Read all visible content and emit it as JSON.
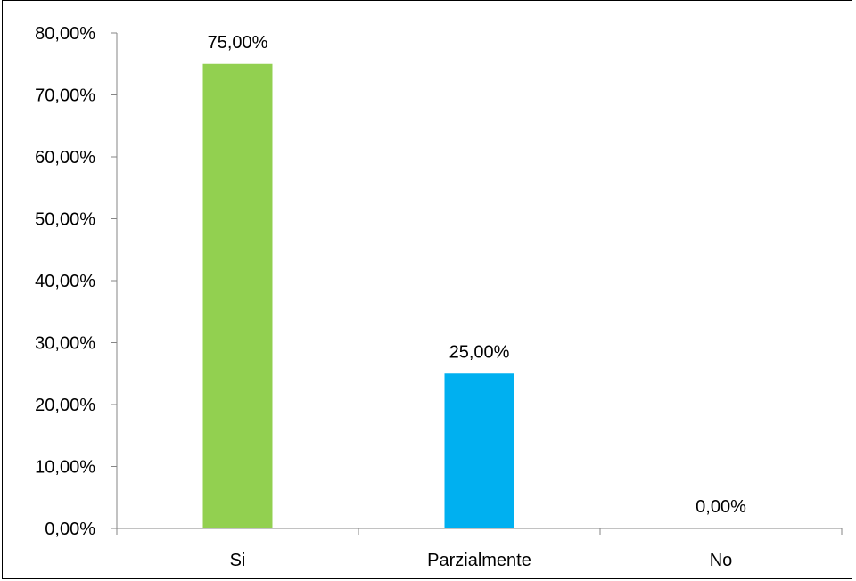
{
  "chart_data": {
    "type": "bar",
    "title": "",
    "xlabel": "",
    "ylabel": "",
    "categories": [
      "Si",
      "Parzialmente",
      "No"
    ],
    "values": [
      75,
      25,
      0
    ],
    "value_labels": [
      "75,00%",
      "25,00%",
      "0,00%"
    ],
    "bar_colors": [
      "#92d050",
      "#00b0f0",
      "#a6a6a6"
    ],
    "ylim": [
      0,
      80
    ],
    "yticks": [
      0,
      10,
      20,
      30,
      40,
      50,
      60,
      70,
      80
    ],
    "ytick_labels": [
      "0,00%",
      "10,00%",
      "20,00%",
      "30,00%",
      "40,00%",
      "50,00%",
      "60,00%",
      "70,00%",
      "80,00%"
    ],
    "grid": false,
    "legend": "none"
  }
}
